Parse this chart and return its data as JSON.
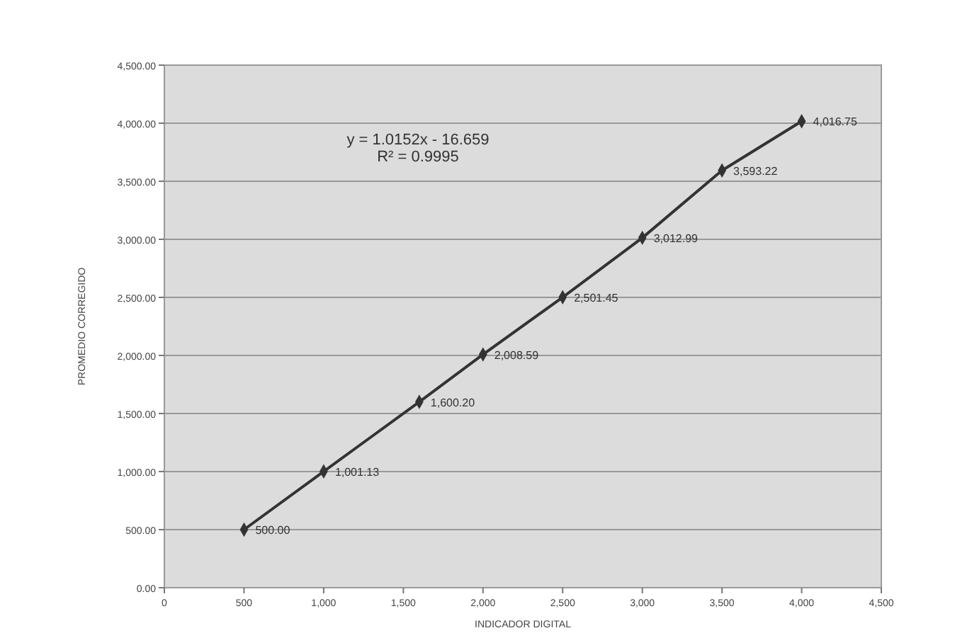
{
  "chart_data": {
    "type": "line",
    "xlabel": "INDICADOR DIGITAL",
    "ylabel": "PROMEDIO CORREGIDO",
    "annotations": [
      "y = 1.0152x - 16.659",
      "R² = 0.9995"
    ],
    "x": [
      500,
      1000,
      1600,
      2000,
      2500,
      3000,
      3500,
      4000
    ],
    "series": [
      {
        "color": "#333333",
        "values": [
          500,
          1001.13,
          1600.2,
          2008.59,
          2501.45,
          3012.99,
          3593.22,
          4016.75
        ],
        "value_labels": [
          "500.00",
          "1,001.13",
          "1,600.20",
          "2,008.59",
          "2,501.45",
          "3,012.99",
          "3,593.22",
          "4,016.75"
        ]
      }
    ],
    "xlim": [
      0,
      4500
    ],
    "xticks": [
      0,
      500,
      {
        "value": 1000,
        "label": "1,000"
      },
      {
        "value": 1500,
        "label": "1,500"
      },
      {
        "value": 2000,
        "label": "2,000"
      },
      {
        "value": 2500,
        "label": "2,500"
      },
      {
        "value": 3000,
        "label": "3,000"
      },
      {
        "value": 3500,
        "label": "3,500"
      },
      {
        "value": 4000,
        "label": "4,000"
      },
      {
        "value": 4500,
        "label": "4,500"
      }
    ],
    "ylim": [
      0,
      4500
    ],
    "yticks": [
      {
        "value": 0,
        "label": "0.00"
      },
      {
        "value": 500,
        "label": "500.00"
      },
      {
        "value": 1000,
        "label": "1,000.00"
      },
      {
        "value": 1500,
        "label": "1,500.00"
      },
      {
        "value": 2000,
        "label": "2,000.00"
      },
      {
        "value": 2500,
        "label": "2,500.00"
      },
      {
        "value": 3000,
        "label": "3,000.00"
      },
      {
        "value": 3500,
        "label": "3,500.00"
      },
      {
        "value": 4000,
        "label": "4,000.00"
      },
      {
        "value": 4500,
        "label": "4,500.00"
      }
    ],
    "grid": "y",
    "marker": "diamond",
    "line_style": "solid"
  }
}
